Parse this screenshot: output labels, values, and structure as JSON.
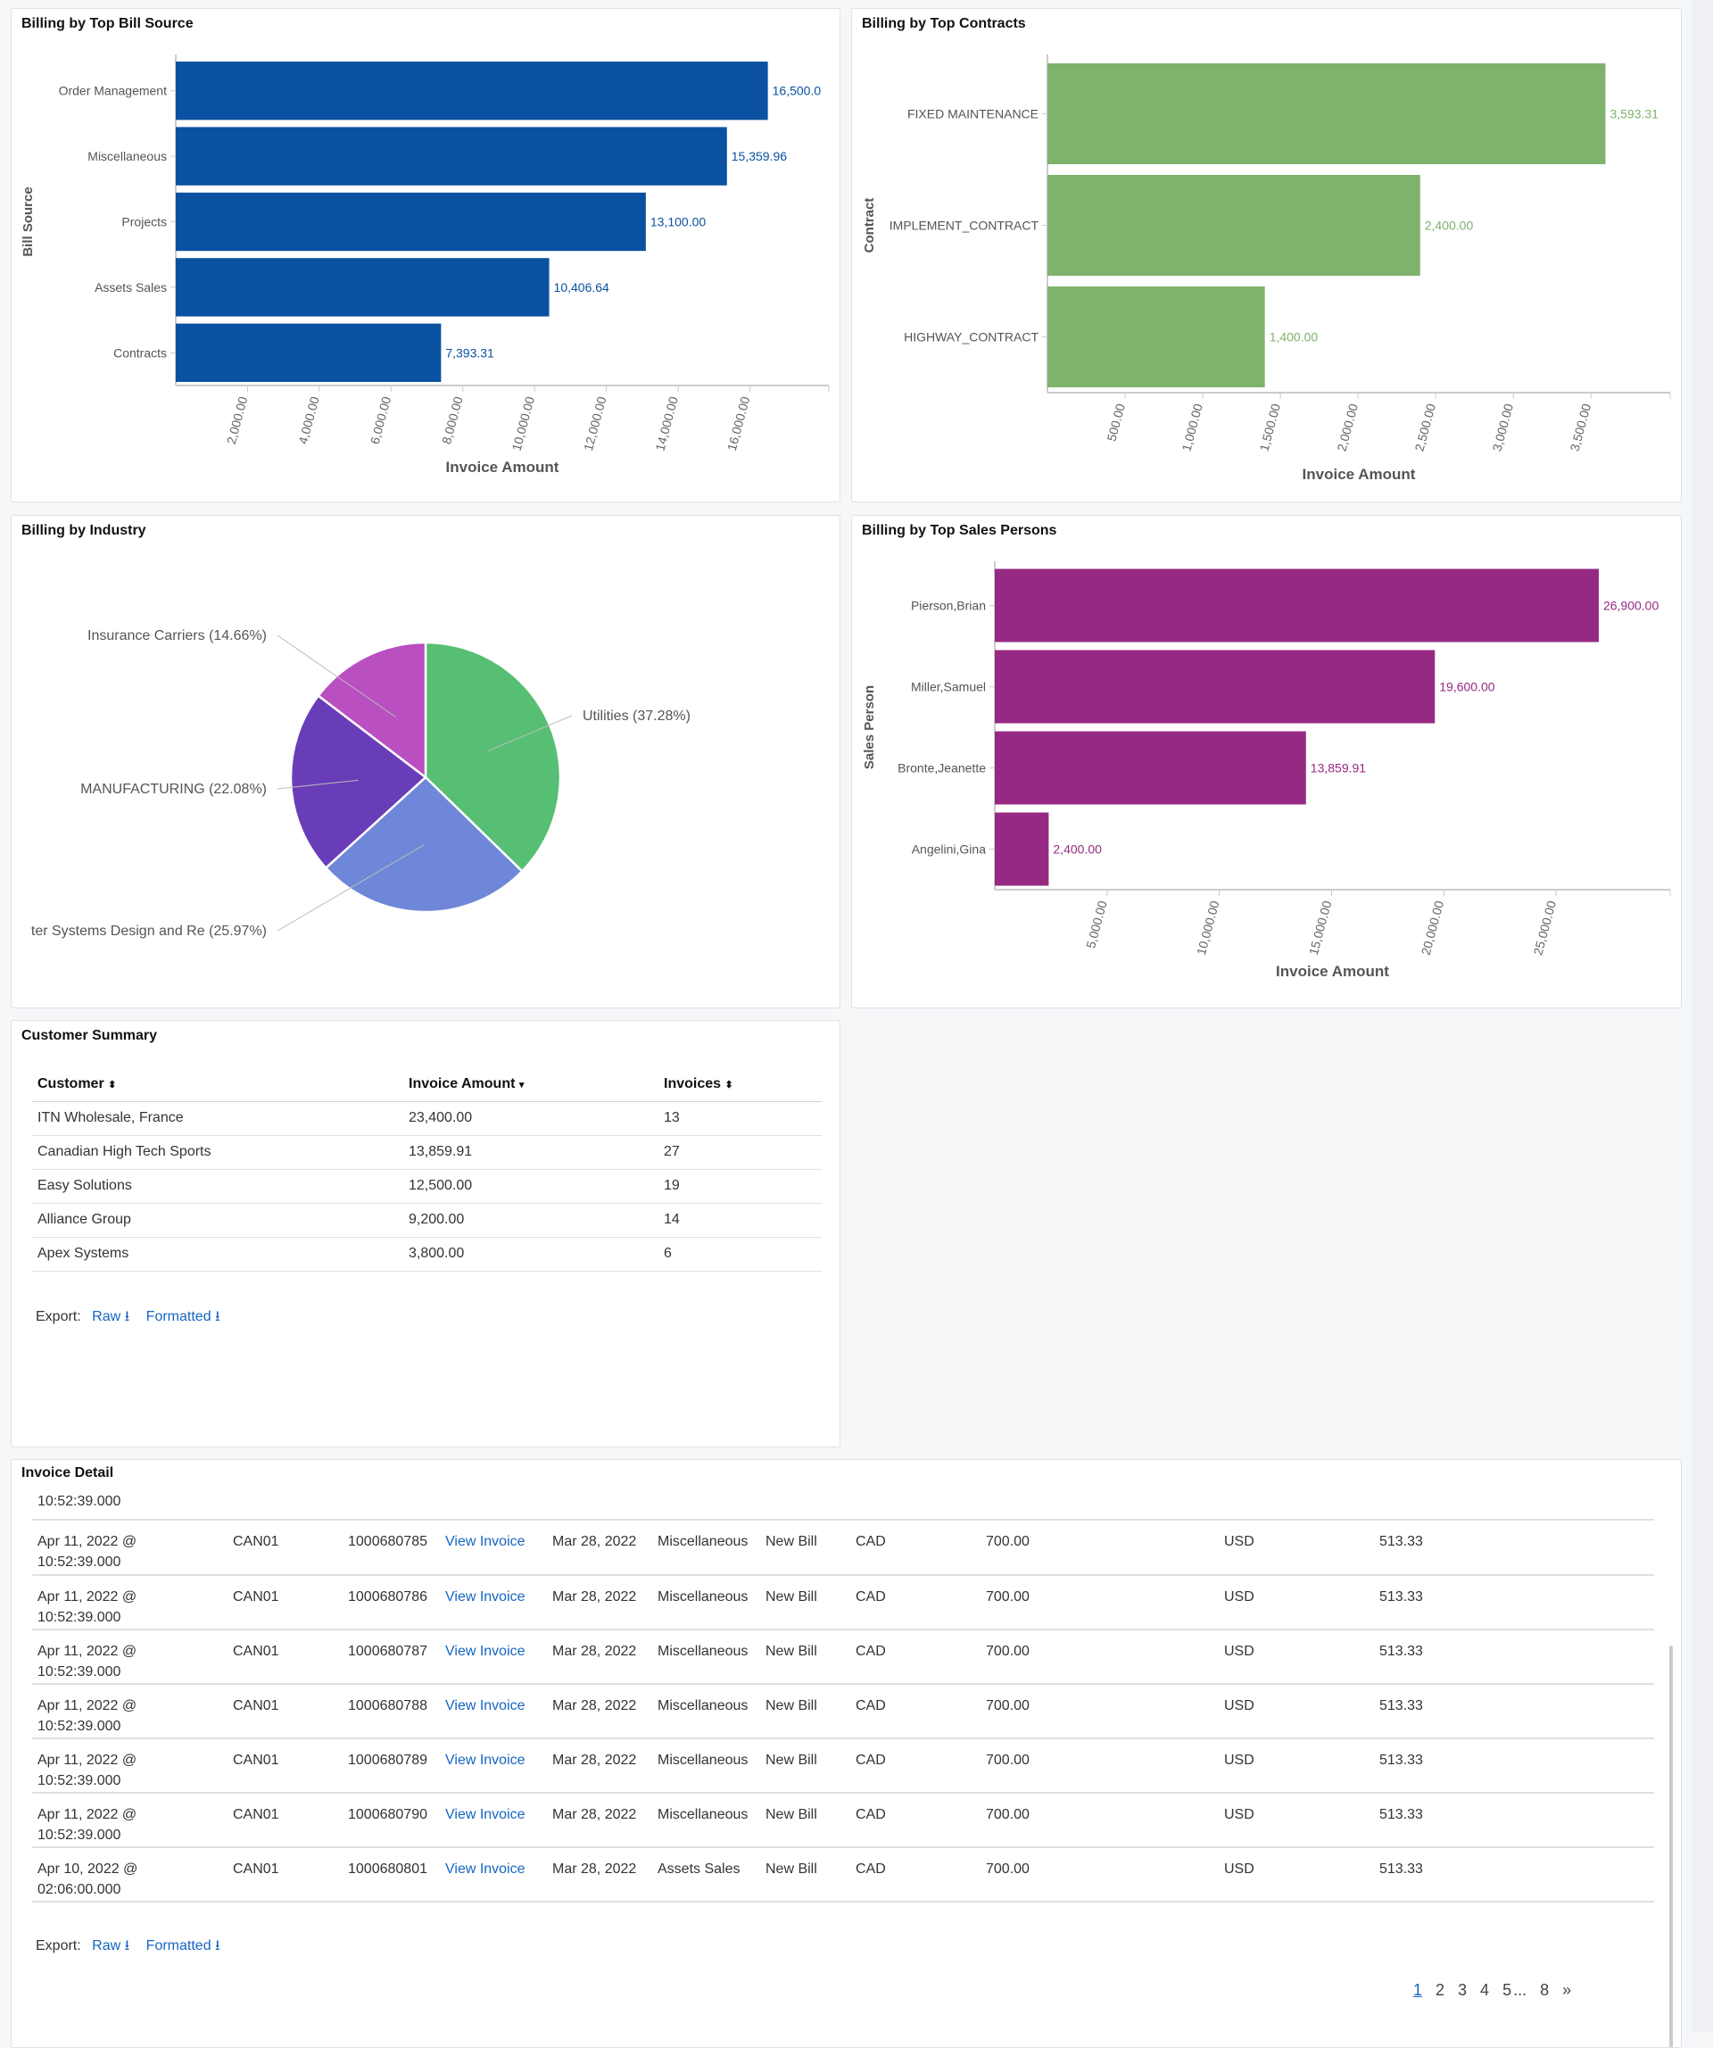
{
  "colors": {
    "bill_source": "#0b51a1",
    "contracts": "#7eb26d",
    "sales": "#962a83",
    "link": "#1565c0"
  },
  "chart_data": [
    {
      "type": "bar",
      "orientation": "horizontal",
      "title": "Billing by Top Bill Source",
      "xlabel": "Invoice Amount",
      "ylabel": "Bill Source",
      "categories": [
        "Order Management",
        "Miscellaneous",
        "Projects",
        "Assets Sales",
        "Contracts"
      ],
      "values": [
        16500.0,
        15359.96,
        13100.0,
        10406.64,
        7393.31
      ],
      "value_labels": [
        "16,500.0",
        "15,359.96",
        "13,100.00",
        "10,406.64",
        "7,393.31"
      ],
      "xticks": [
        "2,000.00",
        "4,000.00",
        "6,000.00",
        "8,000.00",
        "10,000.00",
        "12,000.00",
        "14,000.00",
        "16,000.00"
      ],
      "xlim": [
        0,
        18200
      ]
    },
    {
      "type": "bar",
      "orientation": "horizontal",
      "title": "Billing by Top Contracts",
      "xlabel": "Invoice Amount",
      "ylabel": "Contract",
      "categories": [
        "FIXED MAINTENANCE",
        "IMPLEMENT_CONTRACT",
        "HIGHWAY_CONTRACT"
      ],
      "values": [
        3593.31,
        2400.0,
        1400.0
      ],
      "value_labels": [
        "3,593.31",
        "2,400.00",
        "1,400.00"
      ],
      "xticks": [
        "500.00",
        "1,000.00",
        "1,500.00",
        "2,000.00",
        "2,500.00",
        "3,000.00",
        "3,500.00"
      ],
      "xlim": [
        0,
        4010
      ]
    },
    {
      "type": "pie",
      "title": "Billing by Industry",
      "categories": [
        "Utilities",
        "ter Systems Design and Re",
        "MANUFACTURING",
        "Insurance Carriers"
      ],
      "values": [
        37.28,
        25.97,
        22.08,
        14.66
      ],
      "labels": [
        "Utilities (37.28%)",
        "ter Systems Design and Re (25.97%)",
        "MANUFACTURING (22.08%)",
        "Insurance Carriers (14.66%)"
      ],
      "colors": [
        "#56bf73",
        "#6f87d8",
        "#6a3db8",
        "#b94fc0"
      ]
    },
    {
      "type": "bar",
      "orientation": "horizontal",
      "title": "Billing by Top Sales Persons",
      "xlabel": "Invoice Amount",
      "ylabel": "Sales Person",
      "categories": [
        "Pierson,Brian",
        "Miller,Samuel",
        "Bronte,Jeanette",
        "Angelini,Gina"
      ],
      "values": [
        26900.0,
        19600.0,
        13859.91,
        2400.0
      ],
      "value_labels": [
        "26,900.00",
        "19,600.00",
        "13,859.91",
        "2,400.00"
      ],
      "xticks": [
        "5,000.00",
        "10,000.00",
        "15,000.00",
        "20,000.00",
        "25,000.00"
      ],
      "xlim": [
        0,
        30080
      ]
    }
  ],
  "customer_summary": {
    "title": "Customer Summary",
    "headers": [
      "Customer",
      "Invoice Amount",
      "Invoices"
    ],
    "rows": [
      [
        "ITN Wholesale, France",
        "23,400.00",
        "13"
      ],
      [
        "Canadian High Tech Sports",
        "13,859.91",
        "27"
      ],
      [
        "Easy Solutions",
        "12,500.00",
        "19"
      ],
      [
        "Alliance Group",
        "9,200.00",
        "14"
      ],
      [
        "Apex Systems",
        "3,800.00",
        "6"
      ]
    ],
    "export_label": "Export:",
    "raw": "Raw",
    "formatted": "Formatted"
  },
  "invoice_detail": {
    "title": "Invoice Detail",
    "partial_row_time": "10:52:39.000",
    "rows": [
      [
        "Apr 11, 2022 @",
        "10:52:39.000",
        "CAN01",
        "1000680785",
        "View Invoice",
        "Mar 28, 2022",
        "Miscellaneous",
        "New Bill",
        "CAD",
        "700.00",
        "USD",
        "513.33"
      ],
      [
        "Apr 11, 2022 @",
        "10:52:39.000",
        "CAN01",
        "1000680786",
        "View Invoice",
        "Mar 28, 2022",
        "Miscellaneous",
        "New Bill",
        "CAD",
        "700.00",
        "USD",
        "513.33"
      ],
      [
        "Apr 11, 2022 @",
        "10:52:39.000",
        "CAN01",
        "1000680787",
        "View Invoice",
        "Mar 28, 2022",
        "Miscellaneous",
        "New Bill",
        "CAD",
        "700.00",
        "USD",
        "513.33"
      ],
      [
        "Apr 11, 2022 @",
        "10:52:39.000",
        "CAN01",
        "1000680788",
        "View Invoice",
        "Mar 28, 2022",
        "Miscellaneous",
        "New Bill",
        "CAD",
        "700.00",
        "USD",
        "513.33"
      ],
      [
        "Apr 11, 2022 @",
        "10:52:39.000",
        "CAN01",
        "1000680789",
        "View Invoice",
        "Mar 28, 2022",
        "Miscellaneous",
        "New Bill",
        "CAD",
        "700.00",
        "USD",
        "513.33"
      ],
      [
        "Apr 11, 2022 @",
        "10:52:39.000",
        "CAN01",
        "1000680790",
        "View Invoice",
        "Mar 28, 2022",
        "Miscellaneous",
        "New Bill",
        "CAD",
        "700.00",
        "USD",
        "513.33"
      ],
      [
        "Apr 10, 2022 @",
        "02:06:00.000",
        "CAN01",
        "1000680801",
        "View Invoice",
        "Mar 28, 2022",
        "Assets Sales",
        "New Bill",
        "CAD",
        "700.00",
        "USD",
        "513.33"
      ]
    ],
    "export_label": "Export:",
    "raw": "Raw",
    "formatted": "Formatted",
    "pages": [
      "1",
      "2",
      "3",
      "4",
      "5",
      "...",
      "8",
      "»"
    ],
    "current_page": "1"
  }
}
